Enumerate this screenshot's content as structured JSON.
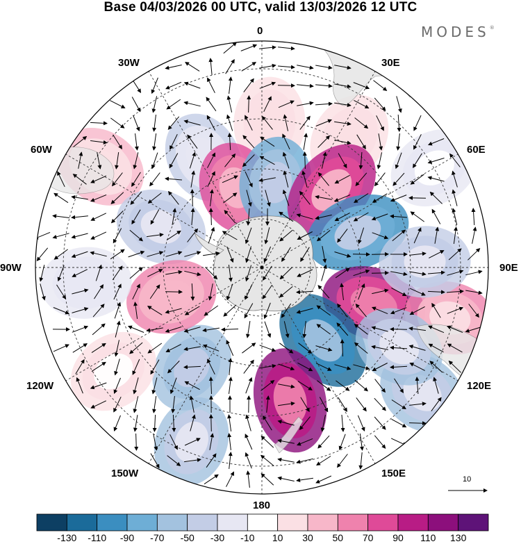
{
  "header": {
    "title": "Base 04/03/2026 00 UTC, valid 13/03/2026 12 UTC",
    "brand": "MODES",
    "brand_mark": "®"
  },
  "map": {
    "projection": "south-polar-stereographic",
    "longitude_labels": {
      "top": "0",
      "top_right": "30E",
      "right_upper": "60E",
      "right": "90E",
      "right_lower": "120E",
      "bottom_right": "150E",
      "bottom": "180",
      "bottom_left": "150W",
      "left_lower": "120W",
      "left": "90W",
      "left_upper": "60W",
      "top_left": "30W"
    },
    "reference_vector_label": "10",
    "anomaly_cells": [
      {
        "lon": -28,
        "r": 0.55,
        "value": -40
      },
      {
        "lon": 3,
        "r": 0.64,
        "value": 28
      },
      {
        "lon": 34,
        "r": 0.69,
        "value": 25
      },
      {
        "lon": 60,
        "r": 0.88,
        "value": -20
      },
      {
        "lon": -58,
        "r": 0.84,
        "value": 40
      },
      {
        "lon": -68,
        "r": 0.48,
        "value": -50
      },
      {
        "lon": -18,
        "r": 0.37,
        "value": 70
      },
      {
        "lon": 9,
        "r": 0.38,
        "value": -75
      },
      {
        "lon": 42,
        "r": 0.46,
        "value": 105
      },
      {
        "lon": 70,
        "r": 0.45,
        "value": -100
      },
      {
        "lon": 108,
        "r": 0.52,
        "value": 120
      },
      {
        "lon": 140,
        "r": 0.42,
        "value": -130
      },
      {
        "lon": 168,
        "r": 0.6,
        "value": 128
      },
      {
        "lon": -145,
        "r": 0.54,
        "value": -70
      },
      {
        "lon": -108,
        "r": 0.42,
        "value": 68
      },
      {
        "lon": -95,
        "r": 0.78,
        "value": -30
      },
      {
        "lon": -158,
        "r": 0.83,
        "value": -65
      },
      {
        "lon": 105,
        "r": 0.86,
        "value": 55
      },
      {
        "lon": 128,
        "r": 0.9,
        "value": -55
      },
      {
        "lon": 120,
        "r": 0.7,
        "value": -60
      },
      {
        "lon": -125,
        "r": 0.8,
        "value": 20
      },
      {
        "lon": 88,
        "r": 0.72,
        "value": -45
      }
    ]
  },
  "colorbar": {
    "ticks": [
      "-130",
      "-110",
      "-90",
      "-70",
      "-50",
      "-30",
      "-10",
      "10",
      "30",
      "50",
      "70",
      "90",
      "110",
      "130"
    ],
    "bin_colors": [
      "#0d3f63",
      "#1b6b9a",
      "#3b8ec0",
      "#6eaed6",
      "#a3c2df",
      "#c3cde6",
      "#e7e7f3",
      "#ffffff",
      "#fbe0e4",
      "#f7b7c9",
      "#ef82ad",
      "#df4a98",
      "#b81c85",
      "#8c0f7c",
      "#5e1378"
    ]
  }
}
